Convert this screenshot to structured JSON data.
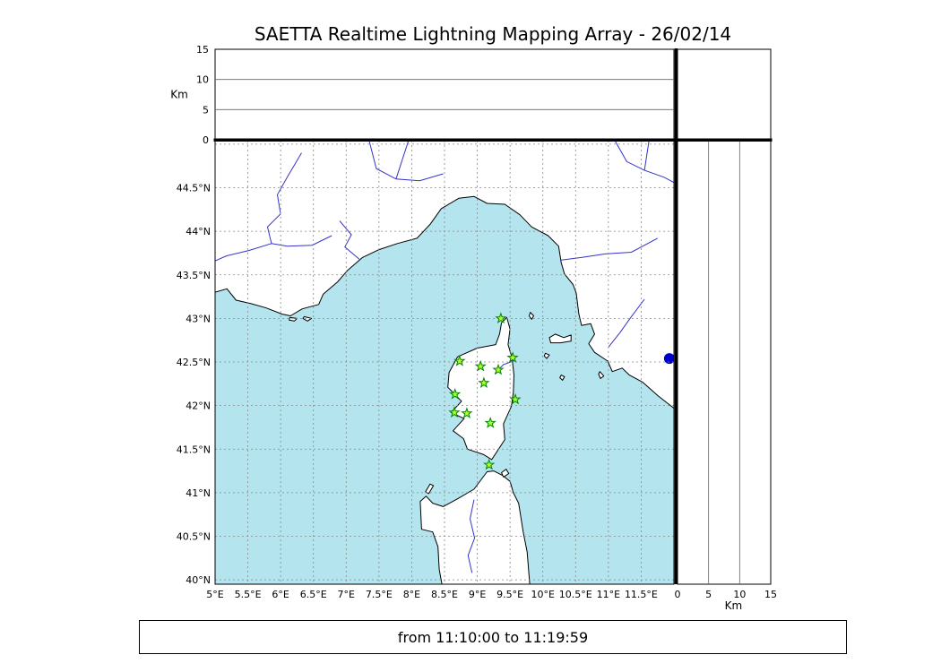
{
  "title": "SAETTA Realtime Lightning Mapping Array - 26/02/14",
  "status_bar": {
    "text": "from 11:10:00 to 11:19:59"
  },
  "chart_data": {
    "type": "map",
    "extent": {
      "lon_min": 5.0,
      "lon_max": 12.0,
      "lat_min": 39.95,
      "lat_max": 45.04
    },
    "grid_step_deg": 0.5,
    "axes": {
      "lon_ticks": [
        {
          "v": 5,
          "label": "5°E"
        },
        {
          "v": 5.5,
          "label": "5.5°E"
        },
        {
          "v": 6,
          "label": "6°E"
        },
        {
          "v": 6.5,
          "label": "6.5°E"
        },
        {
          "v": 7,
          "label": "7°E"
        },
        {
          "v": 7.5,
          "label": "7.5°E"
        },
        {
          "v": 8,
          "label": "8°E"
        },
        {
          "v": 8.5,
          "label": "8.5°E"
        },
        {
          "v": 9,
          "label": "9°E"
        },
        {
          "v": 9.5,
          "label": "9.5°E"
        },
        {
          "v": 10,
          "label": "10°E"
        },
        {
          "v": 10.5,
          "label": "10.5°E"
        },
        {
          "v": 11,
          "label": "11°E"
        },
        {
          "v": 11.5,
          "label": "11.5°E"
        }
      ],
      "lat_ticks": [
        {
          "v": 44.5,
          "label": "44.5°N"
        },
        {
          "v": 44,
          "label": "44°N"
        },
        {
          "v": 43.5,
          "label": "43.5°N"
        },
        {
          "v": 43,
          "label": "43°N"
        },
        {
          "v": 42.5,
          "label": "42.5°N"
        },
        {
          "v": 42,
          "label": "42°N"
        },
        {
          "v": 41.5,
          "label": "41.5°N"
        },
        {
          "v": 41,
          "label": "41°N"
        },
        {
          "v": 40.5,
          "label": "40.5°N"
        },
        {
          "v": 40,
          "label": "40°N"
        }
      ],
      "altitude": {
        "label": "Km",
        "ticks": [
          0,
          5,
          10,
          15
        ],
        "max": 15,
        "gridlines": [
          5,
          10
        ]
      }
    },
    "stations": [
      [
        9.36,
        43.0
      ],
      [
        8.73,
        42.51
      ],
      [
        9.05,
        42.45
      ],
      [
        9.54,
        42.55
      ],
      [
        9.32,
        42.41
      ],
      [
        9.1,
        42.26
      ],
      [
        8.66,
        42.13
      ],
      [
        9.58,
        42.07
      ],
      [
        8.65,
        41.92
      ],
      [
        8.84,
        41.91
      ],
      [
        9.2,
        41.8
      ],
      [
        9.18,
        41.32
      ]
    ],
    "lake_bolsena": [
      11.93,
      42.54
    ],
    "colors": {
      "sea": "#b4e4ee",
      "land": "#ffffff",
      "coast": "#000000",
      "river": "#3333cc",
      "grid": "#888888",
      "panel_grid": "#666666",
      "station_fill": "#adff2f",
      "station_stroke": "#008800",
      "lake": "#0000cc"
    },
    "geo": {
      "mainland": [
        [
          5.0,
          43.3
        ],
        [
          5.18,
          43.34
        ],
        [
          5.32,
          43.21
        ],
        [
          5.55,
          43.17
        ],
        [
          5.78,
          43.12
        ],
        [
          6.02,
          43.05
        ],
        [
          6.15,
          43.03
        ],
        [
          6.33,
          43.11
        ],
        [
          6.58,
          43.16
        ],
        [
          6.65,
          43.28
        ],
        [
          6.87,
          43.42
        ],
        [
          7.02,
          43.55
        ],
        [
          7.25,
          43.7
        ],
        [
          7.5,
          43.79
        ],
        [
          7.78,
          43.86
        ],
        [
          8.08,
          43.92
        ],
        [
          8.28,
          44.08
        ],
        [
          8.45,
          44.26
        ],
        [
          8.72,
          44.38
        ],
        [
          8.95,
          44.4
        ],
        [
          9.15,
          44.32
        ],
        [
          9.42,
          44.31
        ],
        [
          9.65,
          44.19
        ],
        [
          9.83,
          44.05
        ],
        [
          10.08,
          43.95
        ],
        [
          10.24,
          43.83
        ],
        [
          10.28,
          43.64
        ],
        [
          10.33,
          43.51
        ],
        [
          10.46,
          43.39
        ],
        [
          10.51,
          43.29
        ],
        [
          10.55,
          43.05
        ],
        [
          10.59,
          42.92
        ],
        [
          10.73,
          42.94
        ],
        [
          10.79,
          42.82
        ],
        [
          10.7,
          42.71
        ],
        [
          10.79,
          42.61
        ],
        [
          10.99,
          42.51
        ],
        [
          11.06,
          42.39
        ],
        [
          11.21,
          42.43
        ],
        [
          11.32,
          42.35
        ],
        [
          11.52,
          42.27
        ],
        [
          11.76,
          42.11
        ],
        [
          12.0,
          41.97
        ],
        [
          12.0,
          45.04
        ],
        [
          5.0,
          45.04
        ]
      ],
      "corsica": [
        [
          9.45,
          43.01
        ],
        [
          9.5,
          42.88
        ],
        [
          9.47,
          42.7
        ],
        [
          9.53,
          42.55
        ],
        [
          9.56,
          42.35
        ],
        [
          9.55,
          42.15
        ],
        [
          9.52,
          41.99
        ],
        [
          9.4,
          41.79
        ],
        [
          9.42,
          41.61
        ],
        [
          9.22,
          41.38
        ],
        [
          9.09,
          41.44
        ],
        [
          8.85,
          41.5
        ],
        [
          8.79,
          41.62
        ],
        [
          8.63,
          41.71
        ],
        [
          8.8,
          41.85
        ],
        [
          8.6,
          41.92
        ],
        [
          8.76,
          42.05
        ],
        [
          8.55,
          42.21
        ],
        [
          8.57,
          42.38
        ],
        [
          8.7,
          42.56
        ],
        [
          9.0,
          42.66
        ],
        [
          9.28,
          42.7
        ],
        [
          9.34,
          42.82
        ],
        [
          9.37,
          42.95
        ]
      ],
      "sardinia": [
        [
          8.22,
          40.96
        ],
        [
          8.13,
          40.9
        ],
        [
          8.15,
          40.58
        ],
        [
          8.32,
          40.55
        ],
        [
          8.4,
          40.38
        ],
        [
          8.42,
          40.12
        ],
        [
          8.46,
          39.95
        ],
        [
          9.8,
          39.95
        ],
        [
          9.76,
          40.32
        ],
        [
          9.7,
          40.55
        ],
        [
          9.63,
          40.88
        ],
        [
          9.55,
          41.0
        ],
        [
          9.5,
          41.13
        ],
        [
          9.38,
          41.2
        ],
        [
          9.25,
          41.25
        ],
        [
          9.15,
          41.24
        ],
        [
          8.95,
          41.04
        ],
        [
          8.7,
          40.93
        ],
        [
          8.48,
          40.84
        ],
        [
          8.32,
          40.88
        ]
      ],
      "islands": [
        [
          [
            8.21,
            41.01
          ],
          [
            8.28,
            41.1
          ],
          [
            8.33,
            41.08
          ],
          [
            8.26,
            40.99
          ]
        ],
        [
          [
            10.1,
            42.78
          ],
          [
            10.19,
            42.82
          ],
          [
            10.32,
            42.78
          ],
          [
            10.43,
            42.81
          ],
          [
            10.43,
            42.74
          ],
          [
            10.27,
            42.72
          ],
          [
            10.12,
            42.72
          ]
        ],
        [
          [
            9.81,
            43.07
          ],
          [
            9.86,
            43.03
          ],
          [
            9.83,
            42.99
          ],
          [
            9.79,
            43.03
          ]
        ],
        [
          [
            10.87,
            42.39
          ],
          [
            10.93,
            42.34
          ],
          [
            10.88,
            42.31
          ],
          [
            10.85,
            42.36
          ]
        ],
        [
          [
            10.28,
            42.35
          ],
          [
            10.33,
            42.33
          ],
          [
            10.3,
            42.29
          ],
          [
            10.26,
            42.32
          ]
        ],
        [
          [
            10.04,
            42.6
          ],
          [
            10.1,
            42.58
          ],
          [
            10.06,
            42.54
          ],
          [
            10.02,
            42.57
          ]
        ],
        [
          [
            6.14,
            43.01
          ],
          [
            6.25,
            43.0
          ],
          [
            6.21,
            42.97
          ],
          [
            6.13,
            42.98
          ]
        ],
        [
          [
            6.36,
            43.02
          ],
          [
            6.47,
            43.0
          ],
          [
            6.41,
            42.97
          ],
          [
            6.34,
            43.0
          ]
        ],
        [
          [
            9.37,
            41.23
          ],
          [
            9.44,
            41.27
          ],
          [
            9.48,
            41.22
          ],
          [
            9.4,
            41.18
          ]
        ]
      ],
      "rivers": [
        [
          [
            6.32,
            44.9
          ],
          [
            6.1,
            44.62
          ],
          [
            5.95,
            44.42
          ],
          [
            6.0,
            44.2
          ],
          [
            5.8,
            44.05
          ],
          [
            5.86,
            43.86
          ],
          [
            5.52,
            43.78
          ],
          [
            5.18,
            43.72
          ],
          [
            5.0,
            43.66
          ]
        ],
        [
          [
            6.78,
            43.95
          ],
          [
            6.48,
            43.84
          ],
          [
            6.1,
            43.83
          ],
          [
            5.86,
            43.86
          ]
        ],
        [
          [
            6.9,
            44.12
          ],
          [
            7.08,
            43.96
          ],
          [
            6.98,
            43.82
          ],
          [
            7.2,
            43.68
          ]
        ],
        [
          [
            7.35,
            45.04
          ],
          [
            7.46,
            44.72
          ],
          [
            7.76,
            44.6
          ],
          [
            8.12,
            44.58
          ],
          [
            8.48,
            44.66
          ]
        ],
        [
          [
            7.95,
            45.04
          ],
          [
            7.76,
            44.6
          ]
        ],
        [
          [
            11.1,
            45.04
          ],
          [
            11.28,
            44.8
          ],
          [
            11.55,
            44.7
          ],
          [
            11.85,
            44.62
          ],
          [
            12.0,
            44.56
          ]
        ],
        [
          [
            11.62,
            45.04
          ],
          [
            11.55,
            44.7
          ]
        ],
        [
          [
            11.75,
            43.92
          ],
          [
            11.35,
            43.76
          ],
          [
            10.95,
            43.74
          ],
          [
            10.6,
            43.7
          ],
          [
            10.28,
            43.67
          ]
        ],
        [
          [
            11.55,
            43.22
          ],
          [
            11.33,
            43.0
          ],
          [
            11.18,
            42.84
          ],
          [
            11.0,
            42.67
          ]
        ],
        [
          [
            9.58,
            42.52
          ],
          [
            9.4,
            42.47
          ],
          [
            9.27,
            42.37
          ]
        ],
        [
          [
            8.95,
            40.92
          ],
          [
            8.89,
            40.7
          ],
          [
            8.96,
            40.48
          ],
          [
            8.86,
            40.28
          ],
          [
            8.92,
            40.08
          ]
        ]
      ]
    }
  }
}
